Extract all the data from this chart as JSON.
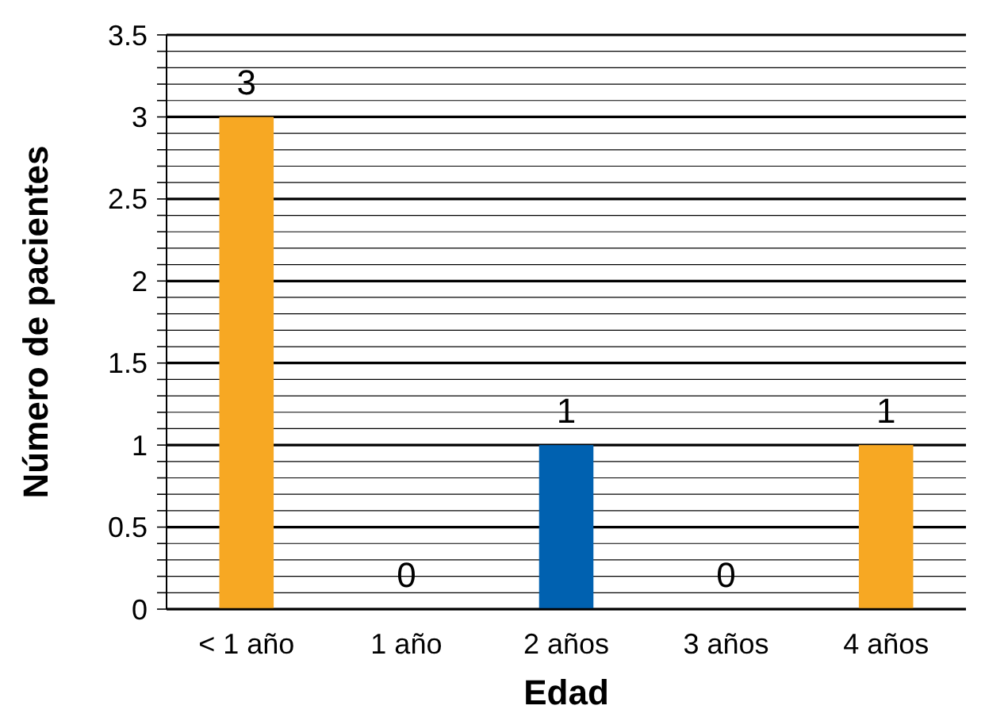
{
  "chart_data": {
    "type": "bar",
    "xlabel": "Edad",
    "ylabel": "Número de pacientes",
    "categories": [
      "< 1 año",
      "1 año",
      "2 años",
      "3 años",
      "4 años"
    ],
    "values": [
      3,
      0,
      1,
      0,
      1
    ],
    "colors": [
      "#f7a823",
      "#f7a823",
      "#0061b0",
      "#f7a823",
      "#f7a823"
    ],
    "ylim": [
      0,
      3.5
    ],
    "yticks": [
      0,
      {
        "value": 0.1,
        "label": null
      },
      {
        "value": 0.2,
        "label": null
      },
      {
        "value": 0.3,
        "label": null
      },
      {
        "value": 0.4,
        "label": null
      },
      0.5,
      {
        "value": 0.6,
        "label": null
      },
      {
        "value": 0.7,
        "label": null
      },
      {
        "value": 0.8,
        "label": null
      },
      {
        "value": 0.9,
        "label": null
      },
      1,
      {
        "value": 1.1,
        "label": null
      },
      {
        "value": 1.2,
        "label": null
      },
      {
        "value": 1.3,
        "label": null
      },
      {
        "value": 1.4,
        "label": null
      },
      1.5,
      {
        "value": 1.6,
        "label": null
      },
      {
        "value": 1.7,
        "label": null
      },
      {
        "value": 1.8,
        "label": null
      },
      {
        "value": 1.9,
        "label": null
      },
      2,
      {
        "value": 2.1,
        "label": null
      },
      {
        "value": 2.2,
        "label": null
      },
      {
        "value": 2.3,
        "label": null
      },
      {
        "value": 2.4,
        "label": null
      },
      2.5,
      {
        "value": 2.6,
        "label": null
      },
      {
        "value": 2.7,
        "label": null
      },
      {
        "value": 2.8,
        "label": null
      },
      {
        "value": 2.9,
        "label": null
      },
      3,
      {
        "value": 3.1,
        "label": null
      },
      {
        "value": 3.2,
        "label": null
      },
      {
        "value": 3.3,
        "label": null
      },
      {
        "value": 3.4,
        "label": null
      },
      3.5
    ],
    "grid": true,
    "data_labels": true
  }
}
